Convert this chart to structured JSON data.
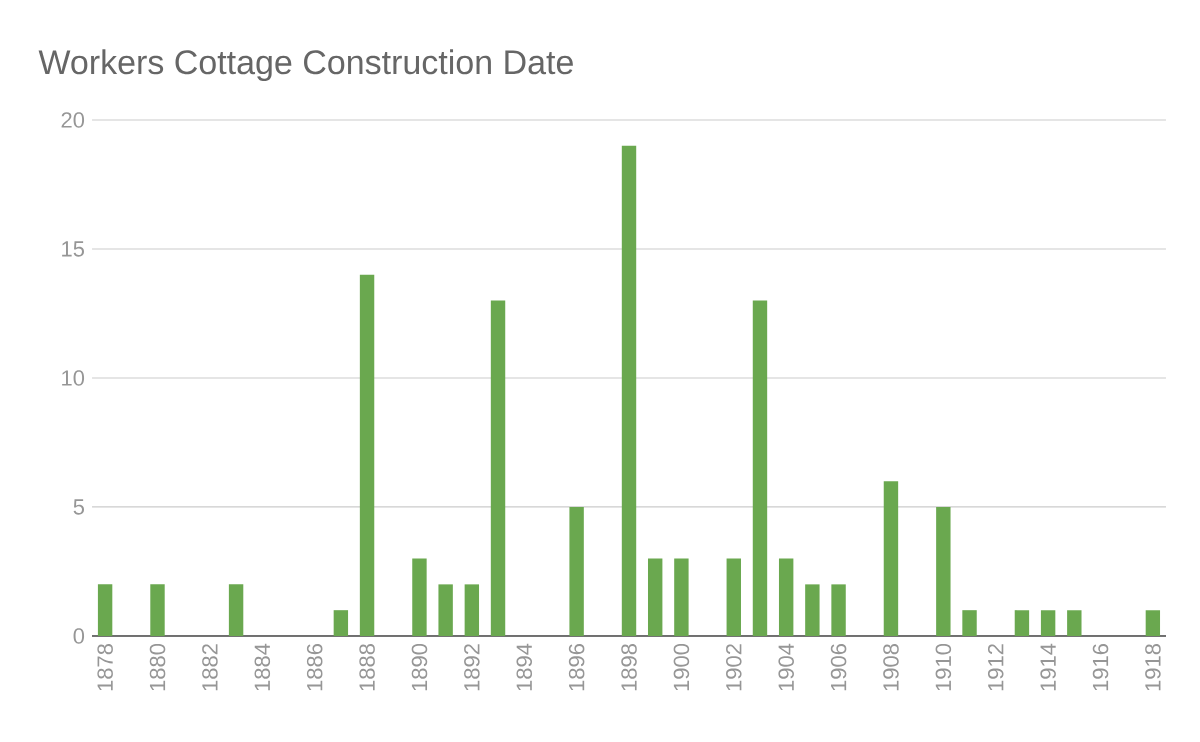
{
  "chart_data": {
    "type": "bar",
    "title": "Workers Cottage Construction Date",
    "categories": [
      "1878",
      null,
      "1880",
      null,
      "1882",
      null,
      "1884",
      null,
      "1886",
      null,
      "1888",
      null,
      "1890",
      null,
      "1892",
      null,
      "1894",
      null,
      "1896",
      null,
      "1898",
      null,
      "1900",
      null,
      "1902",
      null,
      "1904",
      null,
      "1906",
      null,
      "1908",
      null,
      "1910",
      null,
      "1912",
      null,
      "1914",
      null,
      "1916",
      null,
      "1918"
    ],
    "values": [
      2,
      0,
      2,
      0,
      0,
      2,
      0,
      0,
      0,
      1,
      14,
      0,
      3,
      2,
      2,
      13,
      0,
      0,
      5,
      0,
      19,
      3,
      3,
      0,
      3,
      13,
      3,
      2,
      2,
      0,
      6,
      0,
      5,
      1,
      0,
      1,
      1,
      1,
      0,
      0,
      1
    ],
    "color": "#6aa84f",
    "ylim": [
      0,
      20
    ],
    "yticks": [
      0,
      5,
      10,
      15,
      20
    ],
    "grid": "y"
  }
}
